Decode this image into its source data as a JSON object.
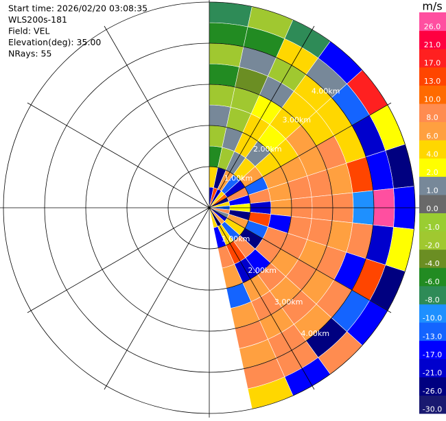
{
  "chart_data": {
    "type": "ppi",
    "info": [
      "Start time: 2026/02/20 03:08:35",
      "WLS200s-181",
      "Field: VEL",
      "Elevation(deg): 35.00",
      "NRays: 55"
    ],
    "unit": "m/s",
    "levels": [
      {
        "value": -30,
        "label": "-30.0"
      },
      {
        "value": -26,
        "label": "-26.0"
      },
      {
        "value": -21,
        "label": "-21.0"
      },
      {
        "value": -17,
        "label": "-17.0"
      },
      {
        "value": -13,
        "label": "-13.0"
      },
      {
        "value": -10,
        "label": "-10.0"
      },
      {
        "value": -8,
        "label": "-8.0"
      },
      {
        "value": -6,
        "label": "-6.0"
      },
      {
        "value": -4,
        "label": "-4.0"
      },
      {
        "value": -2,
        "label": "-2.0"
      },
      {
        "value": -1,
        "label": "-1.0"
      },
      {
        "value": 0,
        "label": "0.0"
      },
      {
        "value": 1,
        "label": "1.0"
      },
      {
        "value": 2,
        "label": "2.0"
      },
      {
        "value": 4,
        "label": "4.0"
      },
      {
        "value": 6,
        "label": "6.0"
      },
      {
        "value": 8,
        "label": "8.0"
      },
      {
        "value": 10,
        "label": "10.0"
      },
      {
        "value": 13,
        "label": "13.0"
      },
      {
        "value": 17,
        "label": "17.0"
      },
      {
        "value": 21,
        "label": "21.0"
      },
      {
        "value": 26,
        "label": "26.0"
      }
    ],
    "colors": [
      "#191970",
      "#000080",
      "#0000cd",
      "#0000ff",
      "#1464ff",
      "#1e90ff",
      "#2e8b57",
      "#228b22",
      "#6b8e23",
      "#a0c830",
      "#9acd32",
      "#696969",
      "#778899",
      "#ffff00",
      "#ffd700",
      "#ffa040",
      "#ff8c50",
      "#ff6a00",
      "#ff4500",
      "#ff2020",
      "#ff0040",
      "#ff4fa0"
    ],
    "rings": [
      {
        "value": 1,
        "label": "1.00km"
      },
      {
        "value": 2,
        "label": "2.00km"
      },
      {
        "value": 3,
        "label": "3.00km"
      },
      {
        "value": 4,
        "label": "4.00km"
      }
    ],
    "rmax": 5,
    "azimuths": [
      0,
      12,
      24,
      36,
      48,
      60,
      72,
      84,
      96,
      108,
      120,
      132,
      144,
      156,
      168
    ],
    "ranges": [
      0,
      0.5,
      1,
      1.5,
      2,
      2.5,
      3,
      3.5,
      4,
      4.5,
      5
    ],
    "values": [
      [
        -21,
        4,
        -6,
        -2,
        1,
        -2,
        -6,
        -2,
        -6,
        -8
      ],
      [
        13,
        -26,
        -2,
        1,
        -2,
        -2,
        -4,
        1,
        -6,
        -2
      ],
      [
        -17,
        6,
        1,
        4,
        4,
        2,
        1,
        -2,
        4,
        -8
      ],
      [
        4,
        -13,
        4,
        1,
        2,
        4,
        4,
        4,
        1,
        -17
      ],
      [
        10,
        -21,
        6,
        4,
        4,
        6,
        4,
        4,
        -13,
        17
      ],
      [
        -26,
        8,
        -13,
        6,
        6,
        6,
        8,
        4,
        -21,
        2
      ],
      [
        4,
        -17,
        8,
        6,
        8,
        8,
        6,
        13,
        -17,
        -26
      ],
      [
        -13,
        2,
        -21,
        6,
        8,
        8,
        8,
        -10,
        26,
        -17
      ],
      [
        8,
        -26,
        13,
        -17,
        8,
        8,
        6,
        8,
        -21,
        2
      ],
      [
        1,
        6,
        -13,
        8,
        8,
        6,
        8,
        -17,
        13,
        -26
      ],
      [
        -21,
        4,
        -26,
        8,
        6,
        8,
        6,
        8,
        -13,
        -17
      ],
      [
        6,
        -13,
        8,
        -17,
        8,
        6,
        8,
        6,
        -26,
        8
      ],
      [
        -26,
        4,
        13,
        -21,
        6,
        8,
        6,
        8,
        8,
        -17
      ],
      [
        4,
        -17,
        8,
        6,
        -13,
        6,
        8,
        6,
        8,
        4
      ]
    ]
  }
}
